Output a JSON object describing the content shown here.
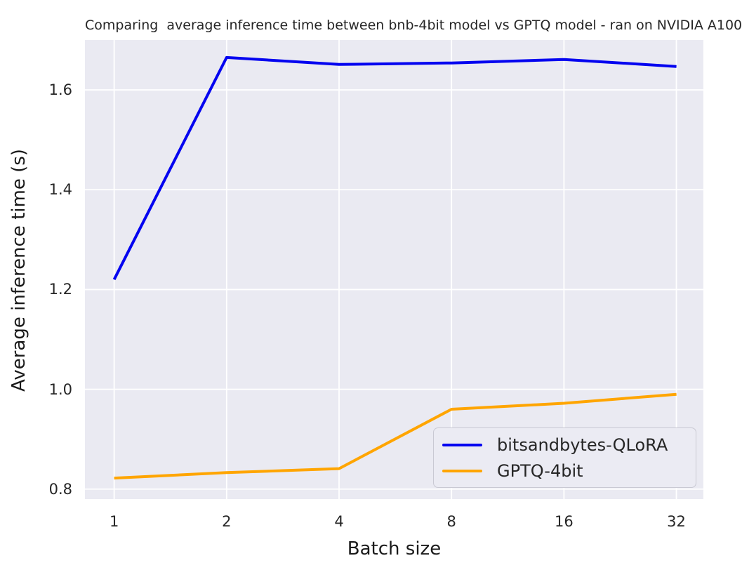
{
  "chart_data": {
    "type": "line",
    "title": "Comparing  average inference time between bnb-4bit model vs GPTQ model - ran on NVIDIA A100",
    "xlabel": "Batch size",
    "ylabel": "Average inference time (s)",
    "x": [
      1,
      2,
      4,
      8,
      16,
      32
    ],
    "x_scale": "log2",
    "xtick_labels": [
      "1",
      "2",
      "4",
      "8",
      "16",
      "32"
    ],
    "yticks": [
      0.8,
      1.0,
      1.2,
      1.4,
      1.6
    ],
    "ytick_labels": [
      "0.8",
      "1.0",
      "1.2",
      "1.4",
      "1.6"
    ],
    "ylim": [
      0.78,
      1.7
    ],
    "xlim_log2": [
      -0.26,
      5.24
    ],
    "grid": true,
    "legend_position": "lower right",
    "series": [
      {
        "name": "bitsandbytes-QLoRA",
        "color": "#0404f0",
        "values": [
          1.22,
          1.665,
          1.651,
          1.654,
          1.661,
          1.647
        ]
      },
      {
        "name": "GPTQ-4bit",
        "color": "#ffa500",
        "values": [
          0.822,
          0.833,
          0.841,
          0.96,
          0.972,
          0.99
        ]
      }
    ],
    "colors": {
      "page_bg": "#ffffff",
      "plot_bg": "#eaeaf2",
      "grid": "#ffffff",
      "text": "#262626",
      "legend_bg": "#ebebf3",
      "legend_border": "#c9c9d3"
    }
  }
}
